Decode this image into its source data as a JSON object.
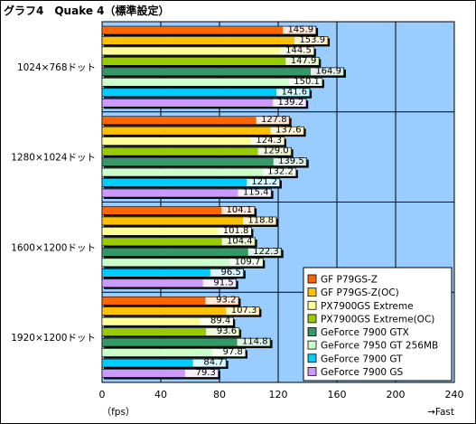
{
  "chart_data": {
    "type": "bar",
    "orientation": "horizontal",
    "title": "グラフ4　Quake 4（標準設定）",
    "xlim": [
      0,
      240
    ],
    "xticks": [
      0,
      40,
      80,
      120,
      160,
      200,
      240
    ],
    "xunit": "（fps）",
    "xnote": "→Fast",
    "grid": true,
    "legend_position": "bottom-right",
    "categories": [
      "1024×768ドット",
      "1280×1024ドット",
      "1600×1200ドット",
      "1920×1200ドット"
    ],
    "series": [
      {
        "name": "GF P79GS-Z",
        "color": "#ff6600",
        "values": [
          145.9,
          127.8,
          104.1,
          93.2
        ]
      },
      {
        "name": "GF P79GS-Z(OC)",
        "color": "#ffc000",
        "values": [
          153.9,
          137.6,
          118.8,
          107.3
        ]
      },
      {
        "name": "PX7900GS Extreme",
        "color": "#ffff99",
        "values": [
          144.5,
          124.3,
          101.8,
          89.4
        ]
      },
      {
        "name": "PX7900GS Extreme(OC)",
        "color": "#99cc00",
        "values": [
          147.9,
          129.0,
          104.4,
          93.6
        ]
      },
      {
        "name": "GeForce 7900 GTX",
        "color": "#339966",
        "values": [
          164.9,
          139.5,
          122.3,
          114.8
        ]
      },
      {
        "name": "GeForce 7950 GT 256MB",
        "color": "#ccffcc",
        "values": [
          150.1,
          132.2,
          109.7,
          97.8
        ]
      },
      {
        "name": "GeForce 7900 GT",
        "color": "#00ccff",
        "values": [
          141.6,
          121.2,
          96.5,
          84.7
        ]
      },
      {
        "name": "GeForce 7900 GS",
        "color": "#cc99ff",
        "values": [
          139.2,
          115.4,
          91.5,
          79.3
        ]
      }
    ],
    "plot_background": "#99ccff"
  }
}
